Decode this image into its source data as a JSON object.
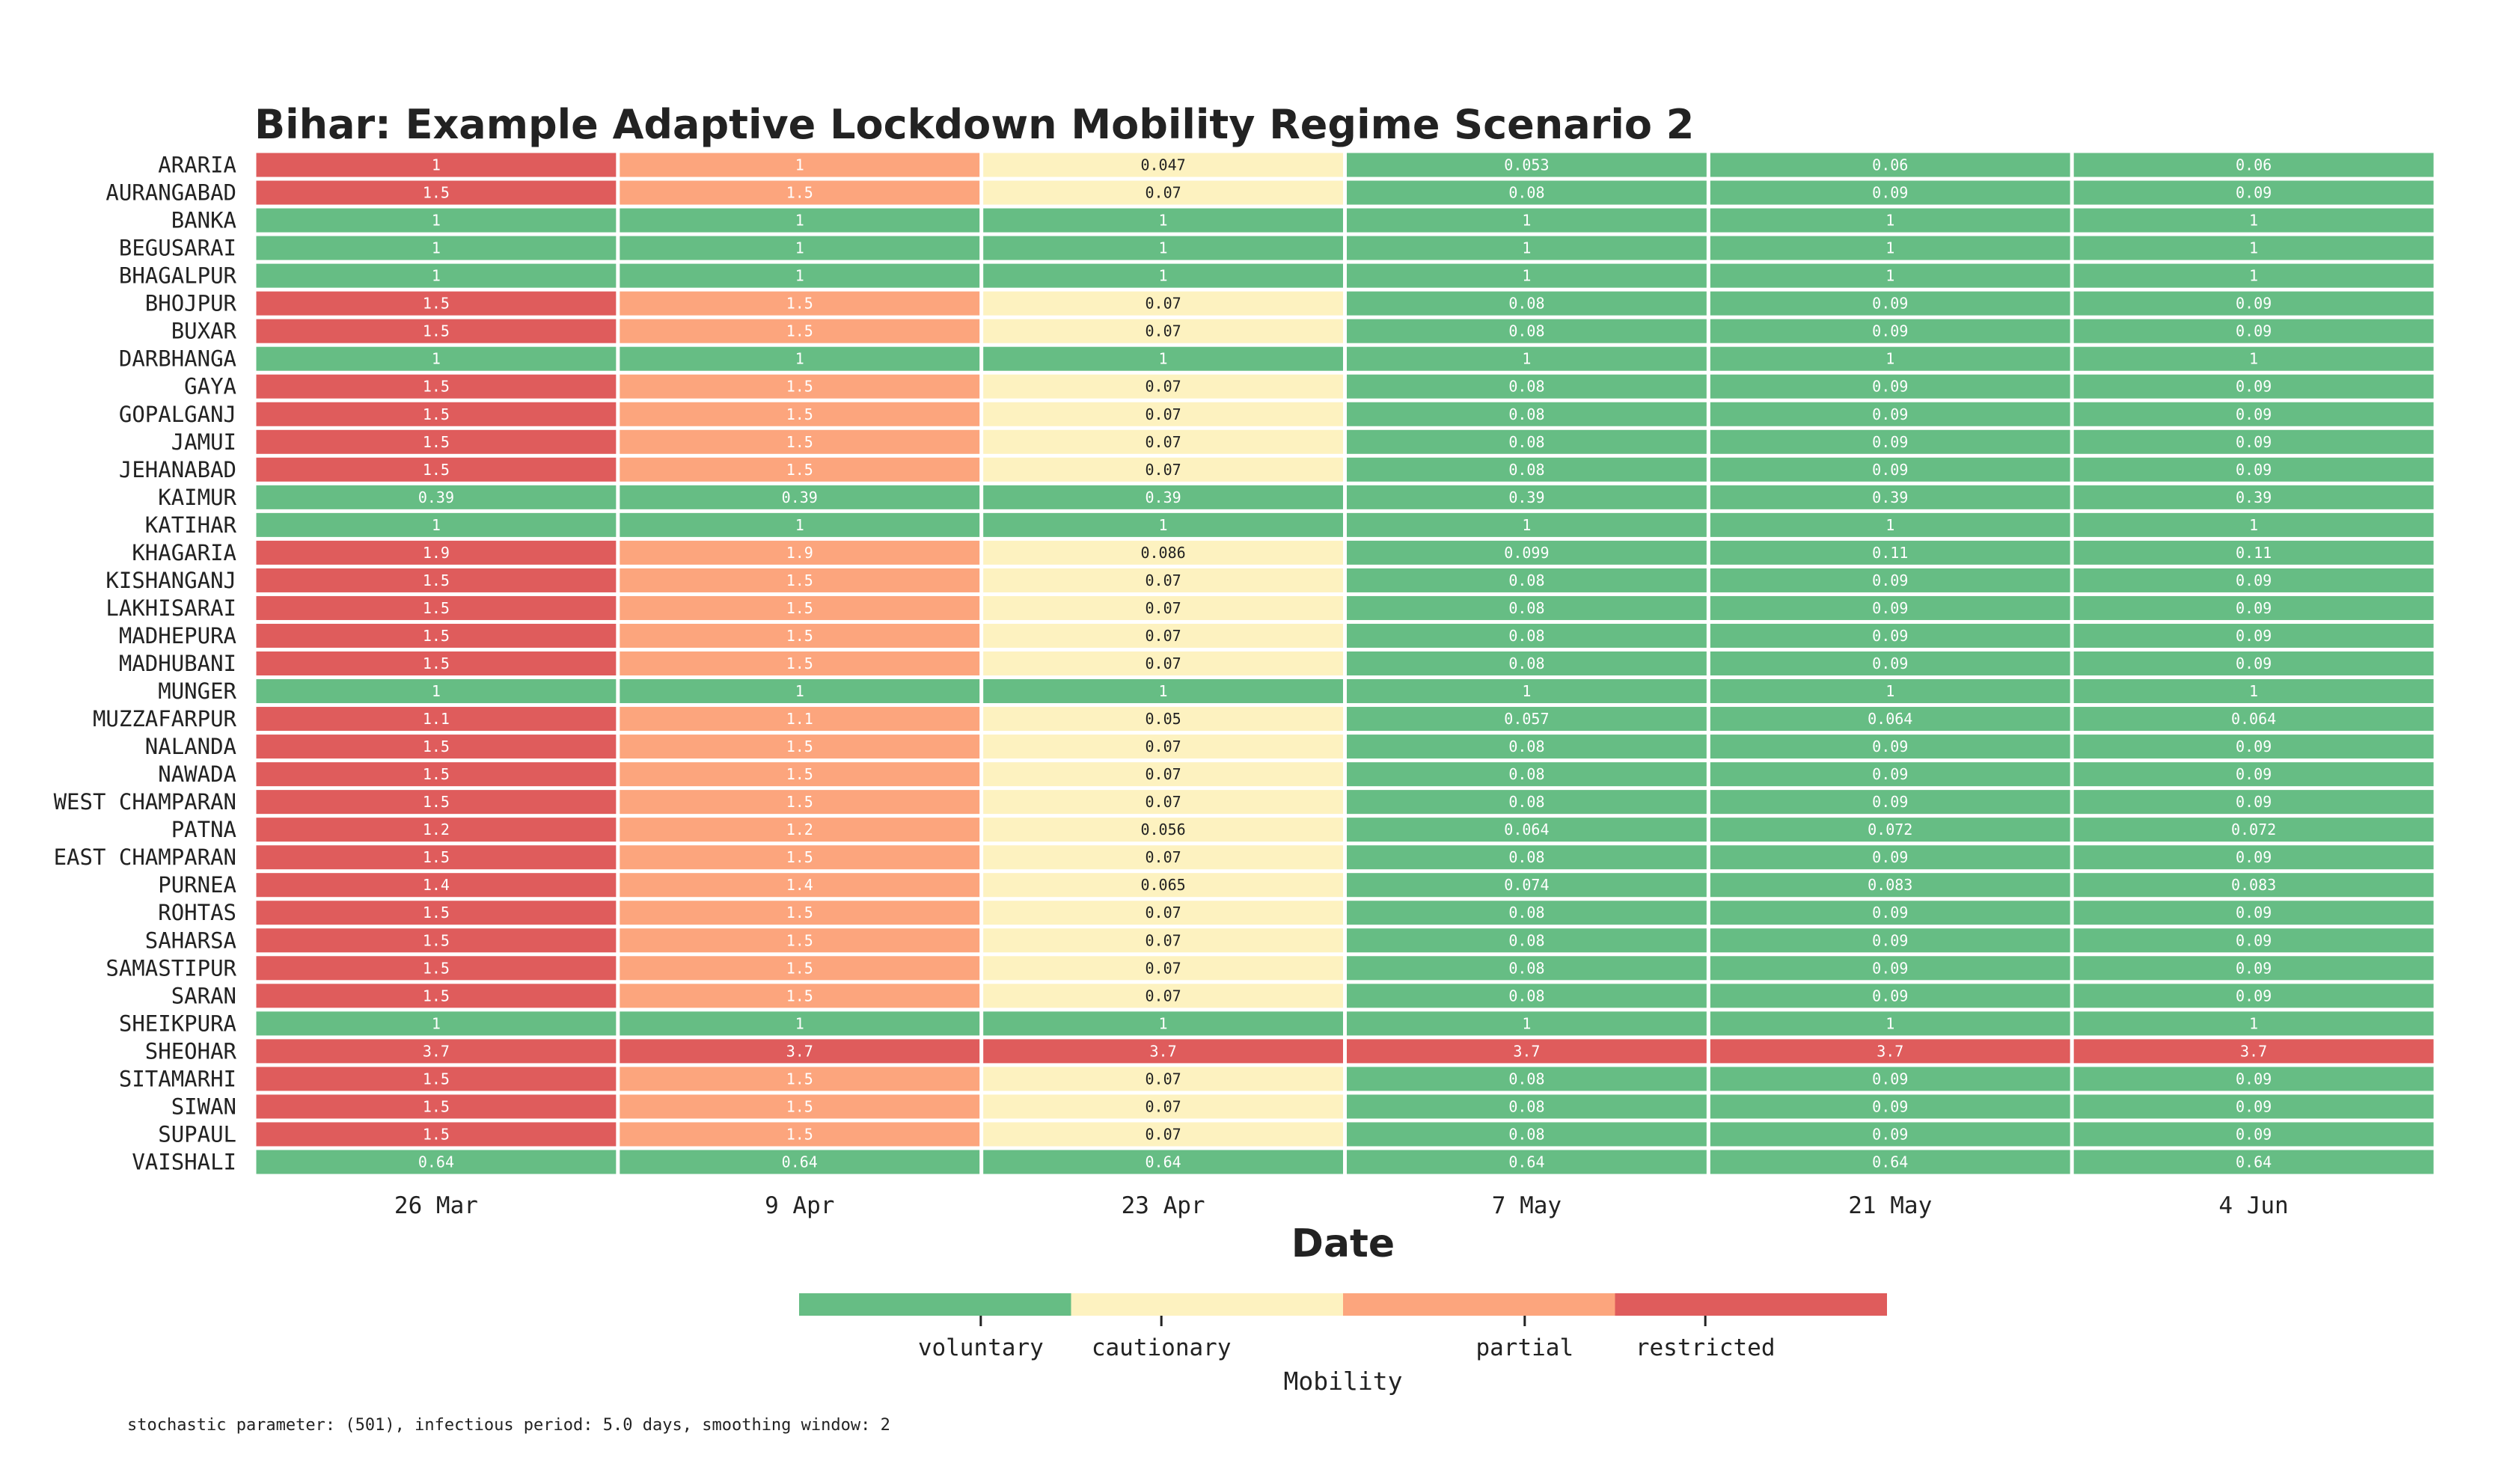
{
  "chart_data": {
    "type": "heatmap",
    "title": "Bihar: Example Adaptive Lockdown Mobility Regime Scenario 2",
    "xlabel": "Date",
    "columns": [
      "26 Mar",
      "9 Apr",
      "23 Apr",
      "7 May",
      "21 May",
      "4 Jun"
    ],
    "rows": [
      {
        "district": "ARARIA",
        "values": [
          "1",
          "1",
          "0.047",
          "0.053",
          "0.06",
          "0.06"
        ],
        "regimes": [
          "restricted",
          "partial",
          "cautionary",
          "voluntary",
          "voluntary",
          "voluntary"
        ]
      },
      {
        "district": "AURANGABAD",
        "values": [
          "1.5",
          "1.5",
          "0.07",
          "0.08",
          "0.09",
          "0.09"
        ],
        "regimes": [
          "restricted",
          "partial",
          "cautionary",
          "voluntary",
          "voluntary",
          "voluntary"
        ]
      },
      {
        "district": "BANKA",
        "values": [
          "1",
          "1",
          "1",
          "1",
          "1",
          "1"
        ],
        "regimes": [
          "voluntary",
          "voluntary",
          "voluntary",
          "voluntary",
          "voluntary",
          "voluntary"
        ]
      },
      {
        "district": "BEGUSARAI",
        "values": [
          "1",
          "1",
          "1",
          "1",
          "1",
          "1"
        ],
        "regimes": [
          "voluntary",
          "voluntary",
          "voluntary",
          "voluntary",
          "voluntary",
          "voluntary"
        ]
      },
      {
        "district": "BHAGALPUR",
        "values": [
          "1",
          "1",
          "1",
          "1",
          "1",
          "1"
        ],
        "regimes": [
          "voluntary",
          "voluntary",
          "voluntary",
          "voluntary",
          "voluntary",
          "voluntary"
        ]
      },
      {
        "district": "BHOJPUR",
        "values": [
          "1.5",
          "1.5",
          "0.07",
          "0.08",
          "0.09",
          "0.09"
        ],
        "regimes": [
          "restricted",
          "partial",
          "cautionary",
          "voluntary",
          "voluntary",
          "voluntary"
        ]
      },
      {
        "district": "BUXAR",
        "values": [
          "1.5",
          "1.5",
          "0.07",
          "0.08",
          "0.09",
          "0.09"
        ],
        "regimes": [
          "restricted",
          "partial",
          "cautionary",
          "voluntary",
          "voluntary",
          "voluntary"
        ]
      },
      {
        "district": "DARBHANGA",
        "values": [
          "1",
          "1",
          "1",
          "1",
          "1",
          "1"
        ],
        "regimes": [
          "voluntary",
          "voluntary",
          "voluntary",
          "voluntary",
          "voluntary",
          "voluntary"
        ]
      },
      {
        "district": "GAYA",
        "values": [
          "1.5",
          "1.5",
          "0.07",
          "0.08",
          "0.09",
          "0.09"
        ],
        "regimes": [
          "restricted",
          "partial",
          "cautionary",
          "voluntary",
          "voluntary",
          "voluntary"
        ]
      },
      {
        "district": "GOPALGANJ",
        "values": [
          "1.5",
          "1.5",
          "0.07",
          "0.08",
          "0.09",
          "0.09"
        ],
        "regimes": [
          "restricted",
          "partial",
          "cautionary",
          "voluntary",
          "voluntary",
          "voluntary"
        ]
      },
      {
        "district": "JAMUI",
        "values": [
          "1.5",
          "1.5",
          "0.07",
          "0.08",
          "0.09",
          "0.09"
        ],
        "regimes": [
          "restricted",
          "partial",
          "cautionary",
          "voluntary",
          "voluntary",
          "voluntary"
        ]
      },
      {
        "district": "JEHANABAD",
        "values": [
          "1.5",
          "1.5",
          "0.07",
          "0.08",
          "0.09",
          "0.09"
        ],
        "regimes": [
          "restricted",
          "partial",
          "cautionary",
          "voluntary",
          "voluntary",
          "voluntary"
        ]
      },
      {
        "district": "KAIMUR",
        "values": [
          "0.39",
          "0.39",
          "0.39",
          "0.39",
          "0.39",
          "0.39"
        ],
        "regimes": [
          "voluntary",
          "voluntary",
          "voluntary",
          "voluntary",
          "voluntary",
          "voluntary"
        ]
      },
      {
        "district": "KATIHAR",
        "values": [
          "1",
          "1",
          "1",
          "1",
          "1",
          "1"
        ],
        "regimes": [
          "voluntary",
          "voluntary",
          "voluntary",
          "voluntary",
          "voluntary",
          "voluntary"
        ]
      },
      {
        "district": "KHAGARIA",
        "values": [
          "1.9",
          "1.9",
          "0.086",
          "0.099",
          "0.11",
          "0.11"
        ],
        "regimes": [
          "restricted",
          "partial",
          "cautionary",
          "voluntary",
          "voluntary",
          "voluntary"
        ]
      },
      {
        "district": "KISHANGANJ",
        "values": [
          "1.5",
          "1.5",
          "0.07",
          "0.08",
          "0.09",
          "0.09"
        ],
        "regimes": [
          "restricted",
          "partial",
          "cautionary",
          "voluntary",
          "voluntary",
          "voluntary"
        ]
      },
      {
        "district": "LAKHISARAI",
        "values": [
          "1.5",
          "1.5",
          "0.07",
          "0.08",
          "0.09",
          "0.09"
        ],
        "regimes": [
          "restricted",
          "partial",
          "cautionary",
          "voluntary",
          "voluntary",
          "voluntary"
        ]
      },
      {
        "district": "MADHEPURA",
        "values": [
          "1.5",
          "1.5",
          "0.07",
          "0.08",
          "0.09",
          "0.09"
        ],
        "regimes": [
          "restricted",
          "partial",
          "cautionary",
          "voluntary",
          "voluntary",
          "voluntary"
        ]
      },
      {
        "district": "MADHUBANI",
        "values": [
          "1.5",
          "1.5",
          "0.07",
          "0.08",
          "0.09",
          "0.09"
        ],
        "regimes": [
          "restricted",
          "partial",
          "cautionary",
          "voluntary",
          "voluntary",
          "voluntary"
        ]
      },
      {
        "district": "MUNGER",
        "values": [
          "1",
          "1",
          "1",
          "1",
          "1",
          "1"
        ],
        "regimes": [
          "voluntary",
          "voluntary",
          "voluntary",
          "voluntary",
          "voluntary",
          "voluntary"
        ]
      },
      {
        "district": "MUZZAFARPUR",
        "values": [
          "1.1",
          "1.1",
          "0.05",
          "0.057",
          "0.064",
          "0.064"
        ],
        "regimes": [
          "restricted",
          "partial",
          "cautionary",
          "voluntary",
          "voluntary",
          "voluntary"
        ]
      },
      {
        "district": "NALANDA",
        "values": [
          "1.5",
          "1.5",
          "0.07",
          "0.08",
          "0.09",
          "0.09"
        ],
        "regimes": [
          "restricted",
          "partial",
          "cautionary",
          "voluntary",
          "voluntary",
          "voluntary"
        ]
      },
      {
        "district": "NAWADA",
        "values": [
          "1.5",
          "1.5",
          "0.07",
          "0.08",
          "0.09",
          "0.09"
        ],
        "regimes": [
          "restricted",
          "partial",
          "cautionary",
          "voluntary",
          "voluntary",
          "voluntary"
        ]
      },
      {
        "district": "WEST CHAMPARAN",
        "values": [
          "1.5",
          "1.5",
          "0.07",
          "0.08",
          "0.09",
          "0.09"
        ],
        "regimes": [
          "restricted",
          "partial",
          "cautionary",
          "voluntary",
          "voluntary",
          "voluntary"
        ]
      },
      {
        "district": "PATNA",
        "values": [
          "1.2",
          "1.2",
          "0.056",
          "0.064",
          "0.072",
          "0.072"
        ],
        "regimes": [
          "restricted",
          "partial",
          "cautionary",
          "voluntary",
          "voluntary",
          "voluntary"
        ]
      },
      {
        "district": "EAST CHAMPARAN",
        "values": [
          "1.5",
          "1.5",
          "0.07",
          "0.08",
          "0.09",
          "0.09"
        ],
        "regimes": [
          "restricted",
          "partial",
          "cautionary",
          "voluntary",
          "voluntary",
          "voluntary"
        ]
      },
      {
        "district": "PURNEA",
        "values": [
          "1.4",
          "1.4",
          "0.065",
          "0.074",
          "0.083",
          "0.083"
        ],
        "regimes": [
          "restricted",
          "partial",
          "cautionary",
          "voluntary",
          "voluntary",
          "voluntary"
        ]
      },
      {
        "district": "ROHTAS",
        "values": [
          "1.5",
          "1.5",
          "0.07",
          "0.08",
          "0.09",
          "0.09"
        ],
        "regimes": [
          "restricted",
          "partial",
          "cautionary",
          "voluntary",
          "voluntary",
          "voluntary"
        ]
      },
      {
        "district": "SAHARSA",
        "values": [
          "1.5",
          "1.5",
          "0.07",
          "0.08",
          "0.09",
          "0.09"
        ],
        "regimes": [
          "restricted",
          "partial",
          "cautionary",
          "voluntary",
          "voluntary",
          "voluntary"
        ]
      },
      {
        "district": "SAMASTIPUR",
        "values": [
          "1.5",
          "1.5",
          "0.07",
          "0.08",
          "0.09",
          "0.09"
        ],
        "regimes": [
          "restricted",
          "partial",
          "cautionary",
          "voluntary",
          "voluntary",
          "voluntary"
        ]
      },
      {
        "district": "SARAN",
        "values": [
          "1.5",
          "1.5",
          "0.07",
          "0.08",
          "0.09",
          "0.09"
        ],
        "regimes": [
          "restricted",
          "partial",
          "cautionary",
          "voluntary",
          "voluntary",
          "voluntary"
        ]
      },
      {
        "district": "SHEIKPURA",
        "values": [
          "1",
          "1",
          "1",
          "1",
          "1",
          "1"
        ],
        "regimes": [
          "voluntary",
          "voluntary",
          "voluntary",
          "voluntary",
          "voluntary",
          "voluntary"
        ]
      },
      {
        "district": "SHEOHAR",
        "values": [
          "3.7",
          "3.7",
          "3.7",
          "3.7",
          "3.7",
          "3.7"
        ],
        "regimes": [
          "restricted",
          "restricted",
          "restricted",
          "restricted",
          "restricted",
          "restricted"
        ]
      },
      {
        "district": "SITAMARHI",
        "values": [
          "1.5",
          "1.5",
          "0.07",
          "0.08",
          "0.09",
          "0.09"
        ],
        "regimes": [
          "restricted",
          "partial",
          "cautionary",
          "voluntary",
          "voluntary",
          "voluntary"
        ]
      },
      {
        "district": "SIWAN",
        "values": [
          "1.5",
          "1.5",
          "0.07",
          "0.08",
          "0.09",
          "0.09"
        ],
        "regimes": [
          "restricted",
          "partial",
          "cautionary",
          "voluntary",
          "voluntary",
          "voluntary"
        ]
      },
      {
        "district": "SUPAUL",
        "values": [
          "1.5",
          "1.5",
          "0.07",
          "0.08",
          "0.09",
          "0.09"
        ],
        "regimes": [
          "restricted",
          "partial",
          "cautionary",
          "voluntary",
          "voluntary",
          "voluntary"
        ]
      },
      {
        "district": "VAISHALI",
        "values": [
          "0.64",
          "0.64",
          "0.64",
          "0.64",
          "0.64",
          "0.64"
        ],
        "regimes": [
          "voluntary",
          "voluntary",
          "voluntary",
          "voluntary",
          "voluntary",
          "voluntary"
        ]
      }
    ],
    "legend": {
      "title": "Mobility",
      "placement": "bottom-center",
      "categories": [
        "voluntary",
        "cautionary",
        "partial",
        "restricted"
      ],
      "colors": {
        "voluntary": "#66bd84",
        "cautionary": "#fdf2c0",
        "partial": "#fca57d",
        "restricted": "#df5c5c"
      }
    },
    "grid": false
  },
  "footnote": "stochastic parameter: (501), infectious period: 5.0 days, smoothing window: 2"
}
